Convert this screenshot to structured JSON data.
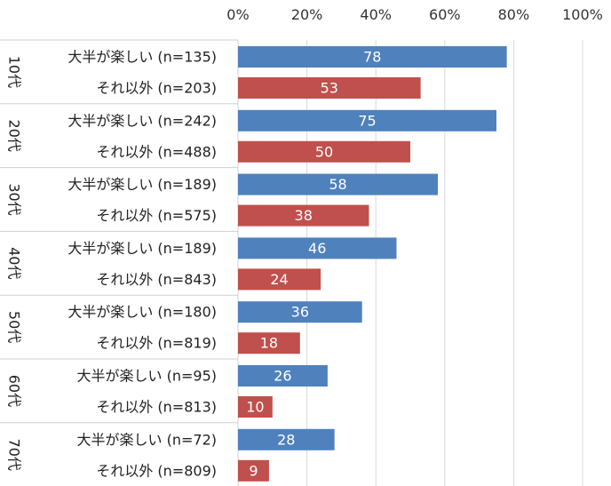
{
  "colors": {
    "group_a": "#4f81bd",
    "group_b": "#c0504d"
  },
  "chart_data": {
    "type": "bar",
    "orientation": "horizontal",
    "xlim": [
      0,
      100
    ],
    "ticks": [
      "0%",
      "20%",
      "40%",
      "60%",
      "80%",
      "100%"
    ],
    "tick_values": [
      0,
      20,
      40,
      60,
      80,
      100
    ],
    "grid": true,
    "groups": [
      {
        "label": "10代",
        "bars": [
          {
            "label": "大半が楽しい (n=135)",
            "value": 78,
            "value_label": "78",
            "kind": "a"
          },
          {
            "label": "それ以外 (n=203)",
            "value": 53,
            "value_label": "53",
            "kind": "b"
          }
        ]
      },
      {
        "label": "20代",
        "bars": [
          {
            "label": "大半が楽しい (n=242)",
            "value": 75,
            "value_label": "75",
            "kind": "a"
          },
          {
            "label": "それ以外 (n=488)",
            "value": 50,
            "value_label": "50",
            "kind": "b"
          }
        ]
      },
      {
        "label": "30代",
        "bars": [
          {
            "label": "大半が楽しい (n=189)",
            "value": 58,
            "value_label": "58",
            "kind": "a"
          },
          {
            "label": "それ以外 (n=575)",
            "value": 38,
            "value_label": "38",
            "kind": "b"
          }
        ]
      },
      {
        "label": "40代",
        "bars": [
          {
            "label": "大半が楽しい (n=189)",
            "value": 46,
            "value_label": "46",
            "kind": "a"
          },
          {
            "label": "それ以外 (n=843)",
            "value": 24,
            "value_label": "24",
            "kind": "b"
          }
        ]
      },
      {
        "label": "50代",
        "bars": [
          {
            "label": "大半が楽しい (n=180)",
            "value": 36,
            "value_label": "36",
            "kind": "a"
          },
          {
            "label": "それ以外 (n=819)",
            "value": 18,
            "value_label": "18",
            "kind": "b"
          }
        ]
      },
      {
        "label": "60代",
        "bars": [
          {
            "label": "大半が楽しい (n=95)",
            "value": 26,
            "value_label": "26",
            "kind": "a"
          },
          {
            "label": "それ以外 (n=813)",
            "value": 10,
            "value_label": "10",
            "kind": "b"
          }
        ]
      },
      {
        "label": "70代",
        "bars": [
          {
            "label": "大半が楽しい (n=72)",
            "value": 28,
            "value_label": "28",
            "kind": "a"
          },
          {
            "label": "それ以外 (n=809)",
            "value": 9,
            "value_label": "9",
            "kind": "b"
          }
        ]
      }
    ]
  }
}
